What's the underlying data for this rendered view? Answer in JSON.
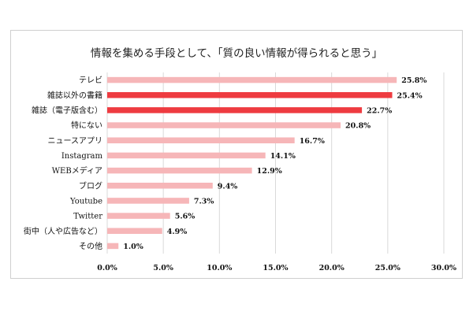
{
  "chart_data": {
    "type": "bar",
    "orientation": "horizontal",
    "title": "情報を集める手段として、「質の良い情報が得られると思う」",
    "categories": [
      "テレビ",
      "雑誌以外の書籍",
      "雑誌（電子版含む）",
      "特にない",
      "ニュースアプリ",
      "Instagram",
      "WEBメディア",
      "ブログ",
      "Youtube",
      "Twitter",
      "街中（人や広告など）",
      "その他"
    ],
    "values": [
      25.8,
      25.4,
      22.7,
      20.8,
      16.7,
      14.1,
      12.9,
      9.4,
      7.3,
      5.6,
      4.9,
      1.0
    ],
    "value_labels": [
      "25.8%",
      "25.4%",
      "22.7%",
      "20.8%",
      "16.7%",
      "14.1%",
      "12.9%",
      "9.4%",
      "7.3%",
      "5.6%",
      "4.9%",
      "1.0%"
    ],
    "highlighted": [
      false,
      true,
      true,
      false,
      false,
      false,
      false,
      false,
      false,
      false,
      false,
      false
    ],
    "xlim": [
      0,
      30
    ],
    "xticks": [
      0,
      5,
      10,
      15,
      20,
      25,
      30
    ],
    "xtick_labels": [
      "0.0%",
      "5.0%",
      "10.0%",
      "15.0%",
      "20.0%",
      "25.0%",
      "30.0%"
    ],
    "grid": true,
    "colors": {
      "bar": "#f6b6b8",
      "highlight": "#ee3b40",
      "grid": "#d9d9d9"
    }
  }
}
